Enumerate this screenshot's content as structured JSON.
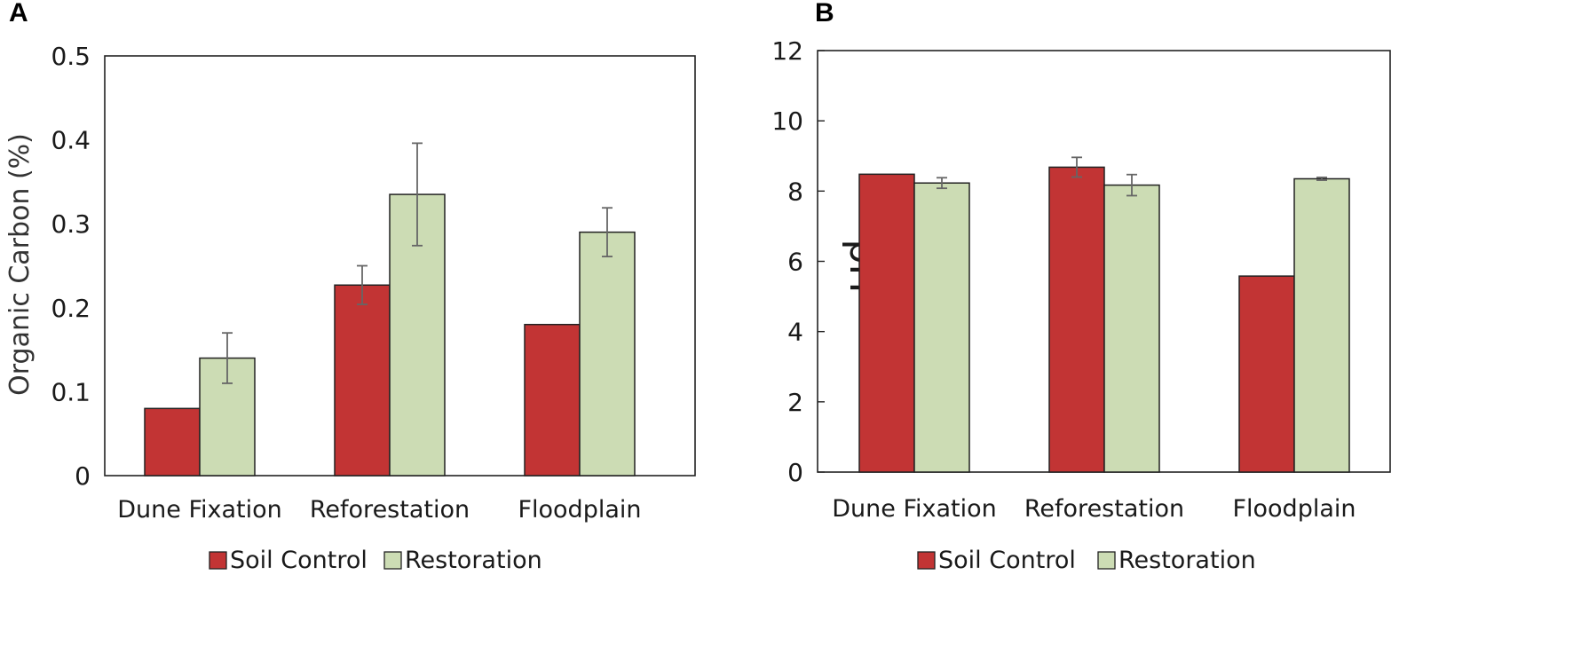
{
  "chart_data": [
    {
      "panel": "A",
      "type": "bar",
      "categories": [
        "Dune Fixation",
        "Reforestation",
        "Floodplain"
      ],
      "series": [
        {
          "name": "Soil Control",
          "color": "#c23434",
          "values": [
            0.08,
            0.227,
            0.18
          ],
          "errors": [
            null,
            0.023,
            null
          ]
        },
        {
          "name": "Restoration",
          "color": "#ccdcb4",
          "values": [
            0.14,
            0.335,
            0.29
          ],
          "errors": [
            0.03,
            0.061,
            0.029
          ]
        }
      ],
      "xlabel": "",
      "ylabel": "Organic Carbon (%)",
      "ylim": [
        0,
        0.5
      ],
      "yticks": [
        0,
        0.1,
        0.2,
        0.3,
        0.4,
        0.5
      ],
      "ytick_labels": [
        "0",
        "0.1",
        "0.2",
        "0.3",
        "0.4",
        "0.5"
      ],
      "grid": false,
      "legend_position": "bottom"
    },
    {
      "panel": "B",
      "type": "bar",
      "categories": [
        "Dune Fixation",
        "Reforestation",
        "Floodplain"
      ],
      "series": [
        {
          "name": "Soil Control",
          "color": "#c23434",
          "values": [
            8.48,
            8.68,
            5.58
          ],
          "errors": [
            null,
            0.28,
            null
          ]
        },
        {
          "name": "Restoration",
          "color": "#ccdcb4",
          "values": [
            8.23,
            8.17,
            8.35
          ],
          "errors": [
            0.15,
            0.3,
            0.04
          ]
        }
      ],
      "xlabel": "",
      "ylabel": "pH",
      "ylim": [
        0,
        12
      ],
      "yticks": [
        0,
        2,
        4,
        6,
        8,
        10,
        12
      ],
      "ytick_labels": [
        "0",
        "2",
        "4",
        "6",
        "8",
        "10",
        "12"
      ],
      "grid": false,
      "legend_position": "bottom"
    }
  ]
}
